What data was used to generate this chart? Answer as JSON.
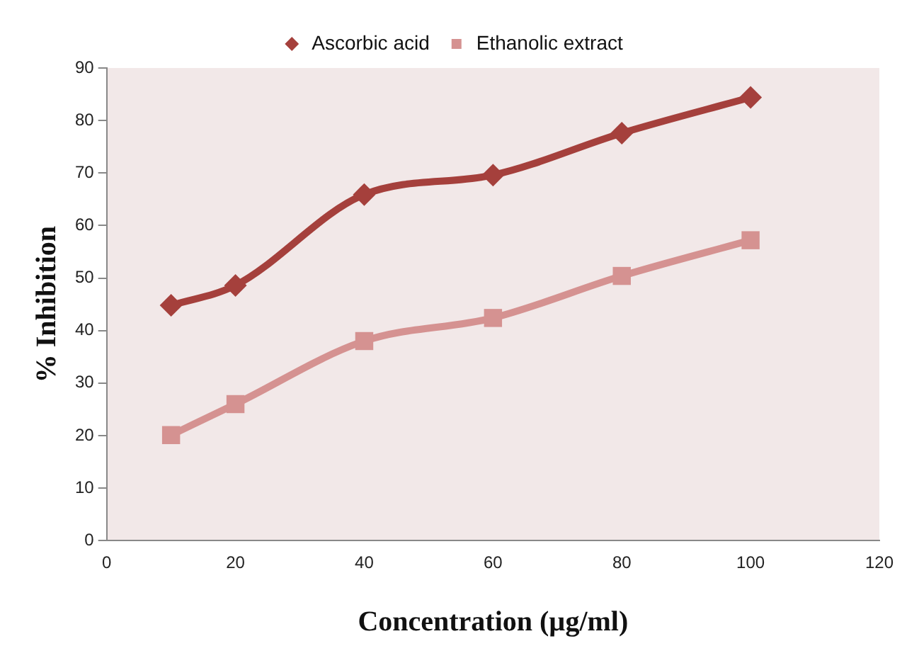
{
  "chart_data": {
    "type": "line",
    "xlabel": "Concentration (µg/ml)",
    "ylabel": "% Inhibition",
    "x": [
      10,
      20,
      40,
      60,
      80,
      100
    ],
    "series": [
      {
        "name": "Ascorbic acid",
        "color": "#a5403c",
        "marker": "diamond",
        "values": [
          44.8,
          48.6,
          65.9,
          69.6,
          77.6,
          84.4
        ]
      },
      {
        "name": "Ethanolic extract",
        "color": "#d59291",
        "marker": "square",
        "values": [
          20.1,
          26,
          38,
          42.4,
          50.4,
          57.2
        ]
      }
    ],
    "xlim": [
      0,
      120
    ],
    "xticks": [
      0,
      20,
      40,
      60,
      80,
      100,
      120
    ],
    "ylim": [
      0,
      90
    ],
    "yticks": [
      0,
      10,
      20,
      30,
      40,
      50,
      60,
      70,
      80,
      90
    ],
    "grid": false,
    "legend": "top"
  }
}
